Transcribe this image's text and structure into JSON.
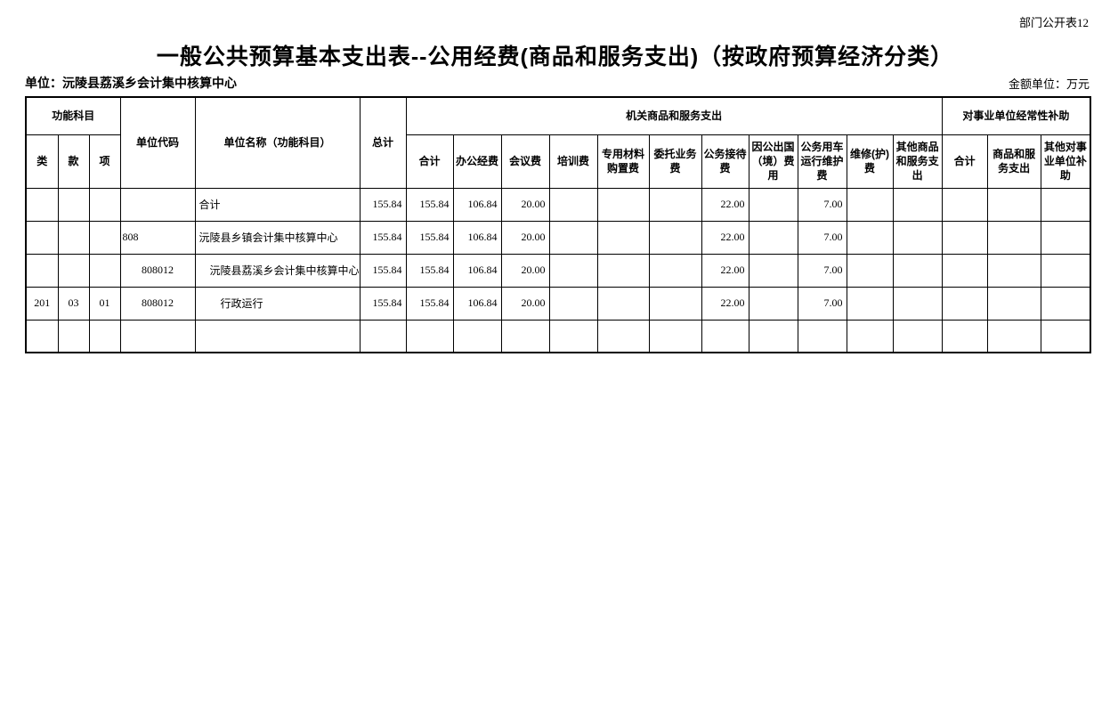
{
  "page": {
    "doc_label": "部门公开表12",
    "title": "一般公共预算基本支出表--公用经费(商品和服务支出)（按政府预算经济分类）",
    "unit_label": "单位：沅陵县荔溪乡会计集中核算中心",
    "amount_unit_label": "金额单位：万元",
    "text_color": "#000000",
    "background_color": "#ffffff",
    "border_color": "#000000"
  },
  "table": {
    "header": {
      "func_group": "功能科目",
      "func_cols": [
        "类",
        "款",
        "项"
      ],
      "unit_code": "单位代码",
      "unit_name": "单位名称（功能科目）",
      "grand_total": "总计",
      "org_goods_group": "机关商品和服务支出",
      "org_goods_cols": [
        "合计",
        "办公经费",
        "会议费",
        "培训费",
        "专用材料购置费",
        "委托业务费",
        "公务接待费",
        "因公出国（境）费用",
        "公务用车运行维护费",
        "维修(护)费",
        "其他商品和服务支出"
      ],
      "subsidy_group": "对事业单位经常性补助",
      "subsidy_cols": [
        "合计",
        "商品和服务支出",
        "其他对事业单位补助"
      ]
    },
    "rows": [
      {
        "lei": "",
        "kuan": "",
        "xiang": "",
        "code": "",
        "code_align": "center",
        "name": "合计",
        "values": [
          "155.84",
          "155.84",
          "106.84",
          "20.00",
          "",
          "",
          "",
          "22.00",
          "",
          "7.00",
          "",
          "",
          "",
          "",
          ""
        ]
      },
      {
        "lei": "",
        "kuan": "",
        "xiang": "",
        "code": "808",
        "code_align": "left",
        "name": "沅陵县乡镇会计集中核算中心",
        "values": [
          "155.84",
          "155.84",
          "106.84",
          "20.00",
          "",
          "",
          "",
          "22.00",
          "",
          "7.00",
          "",
          "",
          "",
          "",
          ""
        ]
      },
      {
        "lei": "",
        "kuan": "",
        "xiang": "",
        "code": "808012",
        "code_align": "center",
        "name": "　沅陵县荔溪乡会计集中核算中心",
        "values": [
          "155.84",
          "155.84",
          "106.84",
          "20.00",
          "",
          "",
          "",
          "22.00",
          "",
          "7.00",
          "",
          "",
          "",
          "",
          ""
        ]
      },
      {
        "lei": "201",
        "kuan": "03",
        "xiang": "01",
        "code": "808012",
        "code_align": "center",
        "name": "　　行政运行",
        "values": [
          "155.84",
          "155.84",
          "106.84",
          "20.00",
          "",
          "",
          "",
          "22.00",
          "",
          "7.00",
          "",
          "",
          "",
          "",
          ""
        ]
      },
      {
        "lei": "",
        "kuan": "",
        "xiang": "",
        "code": "",
        "code_align": "center",
        "name": "",
        "values": [
          "",
          "",
          "",
          "",
          "",
          "",
          "",
          "",
          "",
          "",
          "",
          "",
          "",
          "",
          ""
        ]
      }
    ]
  }
}
